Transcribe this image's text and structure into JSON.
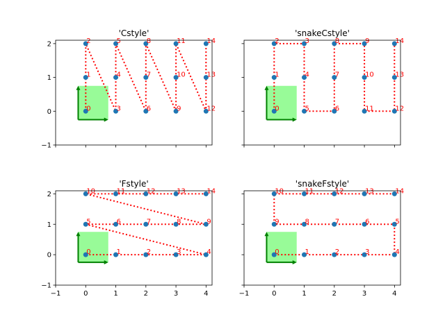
{
  "chart_data": [
    {
      "type": "scatter",
      "title": "'Cstyle'",
      "xlim": [
        -1,
        4.2
      ],
      "ylim": [
        -1,
        2.1
      ],
      "xticks": [
        "-1",
        "0",
        "1",
        "2",
        "3",
        "4"
      ],
      "yticks": [
        "-1",
        "0",
        "1",
        "2"
      ],
      "show_xtick_labels": false,
      "show_ytick_labels": true,
      "points": [
        {
          "label": "0",
          "x": 0,
          "y": 0
        },
        {
          "label": "1",
          "x": 0,
          "y": 1
        },
        {
          "label": "2",
          "x": 0,
          "y": 2
        },
        {
          "label": "3",
          "x": 1,
          "y": 0
        },
        {
          "label": "4",
          "x": 1,
          "y": 1
        },
        {
          "label": "5",
          "x": 1,
          "y": 2
        },
        {
          "label": "6",
          "x": 2,
          "y": 0
        },
        {
          "label": "7",
          "x": 2,
          "y": 1
        },
        {
          "label": "8",
          "x": 2,
          "y": 2
        },
        {
          "label": "9",
          "x": 3,
          "y": 0
        },
        {
          "label": "10",
          "x": 3,
          "y": 1
        },
        {
          "label": "11",
          "x": 3,
          "y": 2
        },
        {
          "label": "12",
          "x": 4,
          "y": 0
        },
        {
          "label": "13",
          "x": 4,
          "y": 1
        },
        {
          "label": "14",
          "x": 4,
          "y": 2
        }
      ],
      "unit_box": {
        "x": [
          -0.25,
          0.75
        ],
        "y": [
          -0.25,
          0.75
        ]
      }
    },
    {
      "type": "scatter",
      "title": "'snakeCstyle'",
      "xlim": [
        -1,
        4.2
      ],
      "ylim": [
        -1,
        2.1
      ],
      "xticks": [
        "-1",
        "0",
        "1",
        "2",
        "3",
        "4"
      ],
      "yticks": [
        "-1",
        "0",
        "1",
        "2"
      ],
      "show_xtick_labels": false,
      "show_ytick_labels": false,
      "points": [
        {
          "label": "0",
          "x": 0,
          "y": 0
        },
        {
          "label": "1",
          "x": 0,
          "y": 1
        },
        {
          "label": "2",
          "x": 0,
          "y": 2
        },
        {
          "label": "3",
          "x": 1,
          "y": 2
        },
        {
          "label": "4",
          "x": 1,
          "y": 1
        },
        {
          "label": "5",
          "x": 1,
          "y": 0
        },
        {
          "label": "6",
          "x": 2,
          "y": 0
        },
        {
          "label": "7",
          "x": 2,
          "y": 1
        },
        {
          "label": "8",
          "x": 2,
          "y": 2
        },
        {
          "label": "9",
          "x": 3,
          "y": 2
        },
        {
          "label": "10",
          "x": 3,
          "y": 1
        },
        {
          "label": "11",
          "x": 3,
          "y": 0
        },
        {
          "label": "12",
          "x": 4,
          "y": 0
        },
        {
          "label": "13",
          "x": 4,
          "y": 1
        },
        {
          "label": "14",
          "x": 4,
          "y": 2
        }
      ],
      "unit_box": {
        "x": [
          -0.25,
          0.75
        ],
        "y": [
          -0.25,
          0.75
        ]
      }
    },
    {
      "type": "scatter",
      "title": "'Fstyle'",
      "xlim": [
        -1,
        4.2
      ],
      "ylim": [
        -1,
        2.1
      ],
      "xticks": [
        "-1",
        "0",
        "1",
        "2",
        "3",
        "4"
      ],
      "yticks": [
        "-1",
        "0",
        "1",
        "2"
      ],
      "show_xtick_labels": true,
      "show_ytick_labels": true,
      "points": [
        {
          "label": "0",
          "x": 0,
          "y": 0
        },
        {
          "label": "1",
          "x": 1,
          "y": 0
        },
        {
          "label": "2",
          "x": 2,
          "y": 0
        },
        {
          "label": "3",
          "x": 3,
          "y": 0
        },
        {
          "label": "4",
          "x": 4,
          "y": 0
        },
        {
          "label": "5",
          "x": 0,
          "y": 1
        },
        {
          "label": "6",
          "x": 1,
          "y": 1
        },
        {
          "label": "7",
          "x": 2,
          "y": 1
        },
        {
          "label": "8",
          "x": 3,
          "y": 1
        },
        {
          "label": "9",
          "x": 4,
          "y": 1
        },
        {
          "label": "10",
          "x": 0,
          "y": 2
        },
        {
          "label": "11",
          "x": 1,
          "y": 2
        },
        {
          "label": "12",
          "x": 2,
          "y": 2
        },
        {
          "label": "13",
          "x": 3,
          "y": 2
        },
        {
          "label": "14",
          "x": 4,
          "y": 2
        }
      ],
      "unit_box": {
        "x": [
          -0.25,
          0.75
        ],
        "y": [
          -0.25,
          0.75
        ]
      }
    },
    {
      "type": "scatter",
      "title": "'snakeFstyle'",
      "xlim": [
        -1,
        4.2
      ],
      "ylim": [
        -1,
        2.1
      ],
      "xticks": [
        "-1",
        "0",
        "1",
        "2",
        "3",
        "4"
      ],
      "yticks": [
        "-1",
        "0",
        "1",
        "2"
      ],
      "show_xtick_labels": true,
      "show_ytick_labels": false,
      "points": [
        {
          "label": "0",
          "x": 0,
          "y": 0
        },
        {
          "label": "1",
          "x": 1,
          "y": 0
        },
        {
          "label": "2",
          "x": 2,
          "y": 0
        },
        {
          "label": "3",
          "x": 3,
          "y": 0
        },
        {
          "label": "4",
          "x": 4,
          "y": 0
        },
        {
          "label": "5",
          "x": 4,
          "y": 1
        },
        {
          "label": "6",
          "x": 3,
          "y": 1
        },
        {
          "label": "7",
          "x": 2,
          "y": 1
        },
        {
          "label": "8",
          "x": 1,
          "y": 1
        },
        {
          "label": "9",
          "x": 0,
          "y": 1
        },
        {
          "label": "10",
          "x": 0,
          "y": 2
        },
        {
          "label": "11",
          "x": 1,
          "y": 2
        },
        {
          "label": "12",
          "x": 2,
          "y": 2
        },
        {
          "label": "13",
          "x": 3,
          "y": 2
        },
        {
          "label": "14",
          "x": 4,
          "y": 2
        }
      ],
      "unit_box": {
        "x": [
          -0.25,
          0.75
        ],
        "y": [
          -0.25,
          0.75
        ]
      }
    }
  ],
  "colors": {
    "point": "#1f77b4",
    "path": "#ff0000",
    "label": "#ff0000",
    "box_fill": "#98fb98",
    "arrow": "#008000"
  }
}
